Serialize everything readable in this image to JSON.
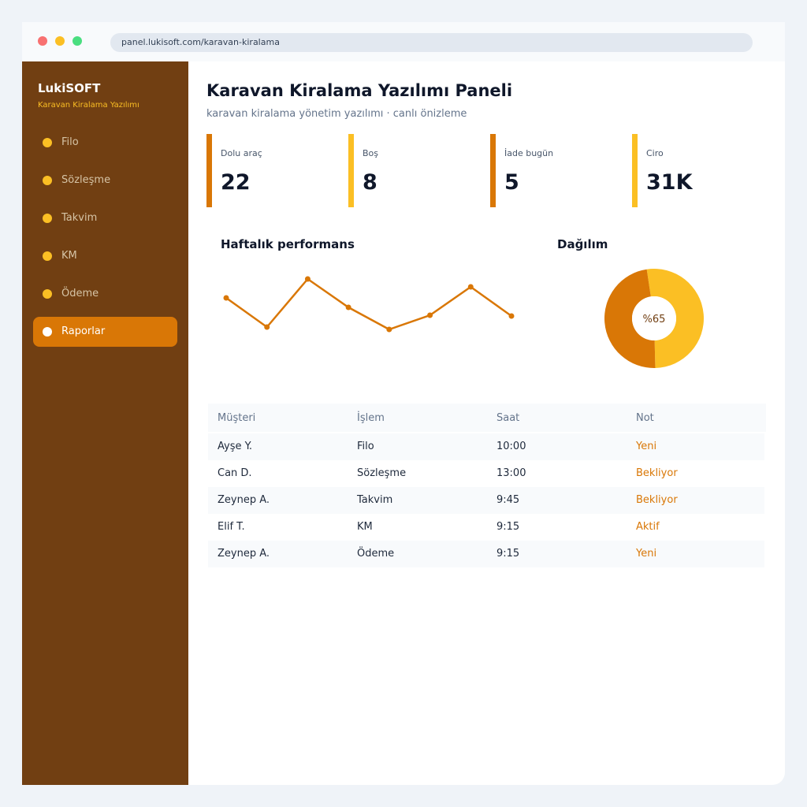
{
  "browser": {
    "url": "panel.lukisoft.com/karavan-kiralama"
  },
  "sidebar": {
    "brand": "LukiSOFT",
    "tagline": "Karavan Kiralama Yazılımı",
    "nav": [
      "Filo",
      "Sözleşme",
      "Takvim",
      "KM",
      "Ödeme",
      "Raporlar"
    ],
    "active": 5
  },
  "header": {
    "title": "Karavan Kiralama Yazılımı Paneli",
    "subtitle": "karavan kiralama yönetim yazılımı · canlı önizleme"
  },
  "stats": [
    {
      "label": "Dolu araç",
      "value": 22,
      "color": "#d97706"
    },
    {
      "label": "Boş",
      "value": 8,
      "color": "#fbbf24"
    },
    {
      "label": "İade bugün",
      "value": 5,
      "color": "#d97706"
    },
    {
      "label": "Ciro",
      "value": "31K",
      "color": "#fbbf24"
    }
  ],
  "chart_data": [
    {
      "type": "line",
      "title": "Haftalık performans",
      "values": [
        62,
        25,
        86,
        50,
        22,
        40,
        76,
        39
      ],
      "ylim": [
        0,
        100
      ],
      "color": "#d97706"
    },
    {
      "type": "donut",
      "title": "Dağılım",
      "values": [
        52,
        48
      ],
      "colors": [
        "#fbbf24",
        "#d97706"
      ],
      "center_value": 65,
      "center_label": "%65"
    }
  ],
  "table": {
    "columns": [
      "Müşteri",
      "İşlem",
      "Saat",
      "Not"
    ],
    "rows": [
      [
        "Ayşe Y.",
        "Filo",
        "10:00",
        "Yeni"
      ],
      [
        "Can D.",
        "Sözleşme",
        "13:00",
        "Bekliyor"
      ],
      [
        "Zeynep A.",
        "Takvim",
        "9:45",
        "Bekliyor"
      ],
      [
        "Elif T.",
        "KM",
        "9:15",
        "Aktif"
      ],
      [
        "Zeynep A.",
        "Ödeme",
        "9:15",
        "Yeni"
      ]
    ]
  }
}
